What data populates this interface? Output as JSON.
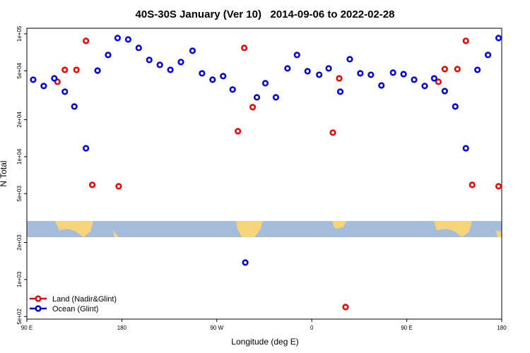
{
  "chart_data": {
    "type": "scatter",
    "title": "40S-30S January (Ver 10)   2014-09-06 to 2022-02-28",
    "x_label": "Longitude (deg E)",
    "y_label": "N Total",
    "log_y": true,
    "legend": "bottom-left",
    "xlim": [
      90,
      540
    ],
    "xticks": [
      {
        "value": 90,
        "label": "90 E"
      },
      180,
      {
        "value": 270,
        "label": "90 W"
      },
      {
        "value": 360,
        "label": "0"
      },
      {
        "value": 450,
        "label": "90 E"
      },
      {
        "value": 540,
        "label": "180"
      }
    ],
    "ylim": [
      476,
      111000
    ],
    "yticks": [
      {
        "value": 500,
        "label": "5e+02"
      },
      {
        "value": 1000,
        "label": "1e+03"
      },
      {
        "value": 2000,
        "label": "2e+03"
      },
      {
        "value": 5000,
        "label": "5e+03"
      },
      {
        "value": 10000,
        "label": "1e+04"
      },
      {
        "value": 20000,
        "label": "2e+04"
      },
      {
        "value": 50000,
        "label": "5e+04"
      },
      {
        "value": 100000,
        "label": "1e+05"
      }
    ],
    "series": [
      {
        "name": "Land (Nadir&Glint)",
        "color": "#ee0000",
        "x": [
          119,
          126,
          137,
          146,
          152,
          177,
          290,
          296,
          304,
          380,
          386,
          392,
          480,
          486,
          498,
          506,
          512,
          537
        ],
        "values": [
          40700,
          50900,
          50900,
          87600,
          5890,
          5740,
          16100,
          76800,
          25300,
          15700,
          43400,
          597,
          40700,
          51600,
          51600,
          87600,
          5890,
          5740
        ]
      },
      {
        "name": "Ocean (Glint)",
        "color": "#0000dd",
        "x": [
          96,
          106,
          116,
          126,
          135,
          146,
          157,
          167,
          176,
          186,
          196,
          206,
          216,
          226,
          236,
          247,
          256,
          266,
          276,
          285,
          297,
          308,
          316,
          326,
          337,
          346,
          356,
          367,
          376,
          387,
          396,
          406,
          416,
          426,
          437,
          447,
          457,
          467,
          476,
          486,
          496,
          506,
          517,
          527,
          537
        ],
        "values": [
          42300,
          37600,
          43400,
          33800,
          25600,
          11700,
          50200,
          67300,
          92400,
          90000,
          76800,
          61300,
          55900,
          50900,
          58900,
          72800,
          47700,
          42300,
          45200,
          35200,
          1374,
          30400,
          39600,
          30400,
          52300,
          67300,
          49600,
          46400,
          52300,
          33800,
          62100,
          47700,
          46400,
          38000,
          48300,
          47000,
          42300,
          37600,
          43400,
          34200,
          25600,
          11700,
          50900,
          67300,
          92400
        ]
      }
    ]
  }
}
